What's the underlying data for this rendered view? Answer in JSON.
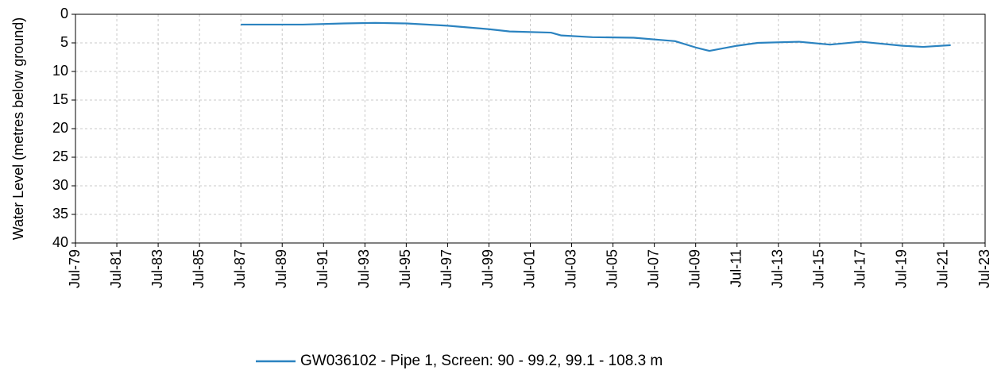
{
  "chart_data": {
    "type": "line",
    "y_label": "Water Level (metres below ground)",
    "x": [
      "1987-07",
      "1990-07",
      "1992-07",
      "1994-01",
      "1995-07",
      "1997-07",
      "1999-07",
      "2000-07",
      "2002-07",
      "2003-01",
      "2004-07",
      "2006-07",
      "2008-07",
      "2009-07",
      "2010-03",
      "2011-07",
      "2012-07",
      "2014-07",
      "2016-01",
      "2017-07",
      "2019-07",
      "2020-07",
      "2021-11"
    ],
    "series": [
      {
        "name": "GW036102 - Pipe 1, Screen: 90 - 99.2, 99.1 - 108.3 m",
        "color": "#2b83c0",
        "values": [
          1.8,
          1.8,
          1.6,
          1.5,
          1.6,
          2.0,
          2.6,
          3.0,
          3.2,
          3.7,
          4.0,
          4.1,
          4.7,
          5.8,
          6.4,
          5.5,
          5.0,
          4.8,
          5.3,
          4.8,
          5.5,
          5.7,
          5.4
        ]
      }
    ],
    "xlim": [
      "1979-07",
      "2023-07"
    ],
    "xticks": [
      {
        "value": "1979-07",
        "label": "Jul-79"
      },
      {
        "value": "1981-07",
        "label": "Jul-81"
      },
      {
        "value": "1983-07",
        "label": "Jul-83"
      },
      {
        "value": "1985-07",
        "label": "Jul-85"
      },
      {
        "value": "1987-07",
        "label": "Jul-87"
      },
      {
        "value": "1989-07",
        "label": "Jul-89"
      },
      {
        "value": "1991-07",
        "label": "Jul-91"
      },
      {
        "value": "1993-07",
        "label": "Jul-93"
      },
      {
        "value": "1995-07",
        "label": "Jul-95"
      },
      {
        "value": "1997-07",
        "label": "Jul-97"
      },
      {
        "value": "1999-07",
        "label": "Jul-99"
      },
      {
        "value": "2001-07",
        "label": "Jul-01"
      },
      {
        "value": "2003-07",
        "label": "Jul-03"
      },
      {
        "value": "2005-07",
        "label": "Jul-05"
      },
      {
        "value": "2007-07",
        "label": "Jul-07"
      },
      {
        "value": "2009-07",
        "label": "Jul-09"
      },
      {
        "value": "2011-07",
        "label": "Jul-11"
      },
      {
        "value": "2013-07",
        "label": "Jul-13"
      },
      {
        "value": "2015-07",
        "label": "Jul-15"
      },
      {
        "value": "2017-07",
        "label": "Jul-17"
      },
      {
        "value": "2019-07",
        "label": "Jul-19"
      },
      {
        "value": "2021-07",
        "label": "Jul-21"
      },
      {
        "value": "2023-07",
        "label": "Jul-23"
      }
    ],
    "ylim": [
      0,
      40
    ],
    "yticks": [
      0,
      5,
      10,
      15,
      20,
      25,
      30,
      35,
      40
    ],
    "invert_y": true,
    "grid": true,
    "legend": "bottom"
  }
}
